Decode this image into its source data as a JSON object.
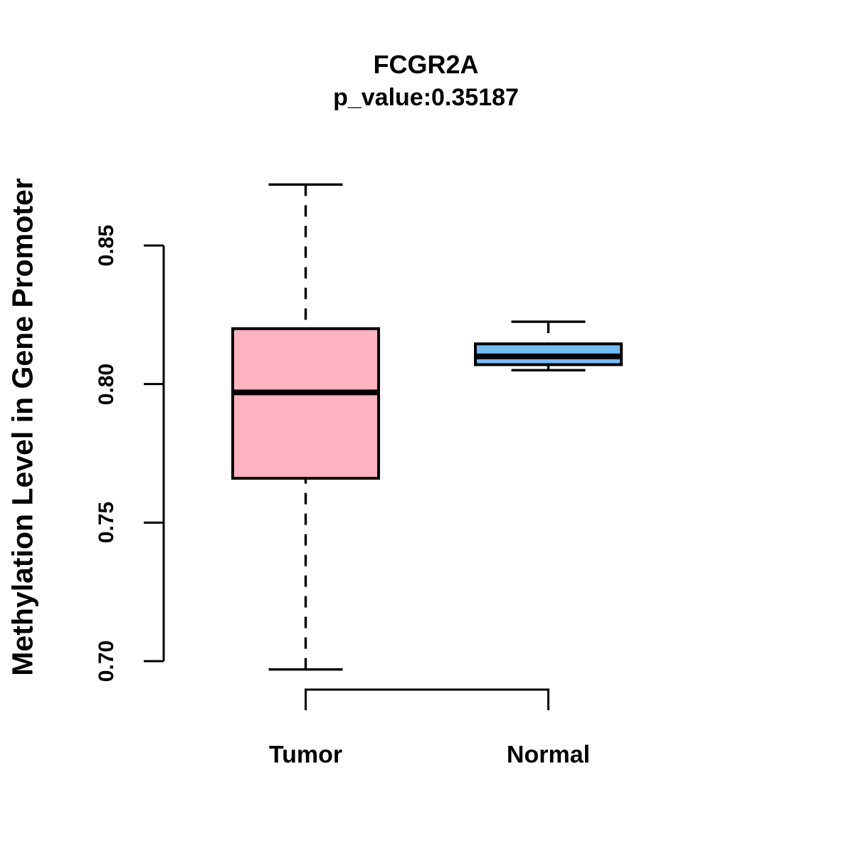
{
  "title": "FCGR2A",
  "subtitle": "p_value:0.35187",
  "ylabel": "Methylation Level in Gene Promoter",
  "chart_data": {
    "type": "boxplot",
    "title": "FCGR2A",
    "subtitle": "p_value:0.35187",
    "ylabel": "Methylation Level in Gene Promoter",
    "xlabel": "",
    "categories": [
      "Tumor",
      "Normal"
    ],
    "ylim": [
      0.7,
      0.85
    ],
    "yticks": [
      0.7,
      0.75,
      0.8,
      0.85
    ],
    "ytick_labels": [
      "0.70",
      "0.75",
      "0.80",
      "0.85"
    ],
    "grid": false,
    "legend": false,
    "series": [
      {
        "name": "Tumor",
        "lower_whisker": 0.697,
        "q1": 0.766,
        "median": 0.797,
        "q3": 0.82,
        "upper_whisker": 0.872,
        "fill_color": "#FFB3C1"
      },
      {
        "name": "Normal",
        "lower_whisker": 0.805,
        "q1": 0.807,
        "median": 0.81,
        "q3": 0.8145,
        "upper_whisker": 0.8225,
        "fill_color": "#74BCF3"
      }
    ],
    "stroke_color": "#000000",
    "background_color": "#FFFFFF"
  }
}
